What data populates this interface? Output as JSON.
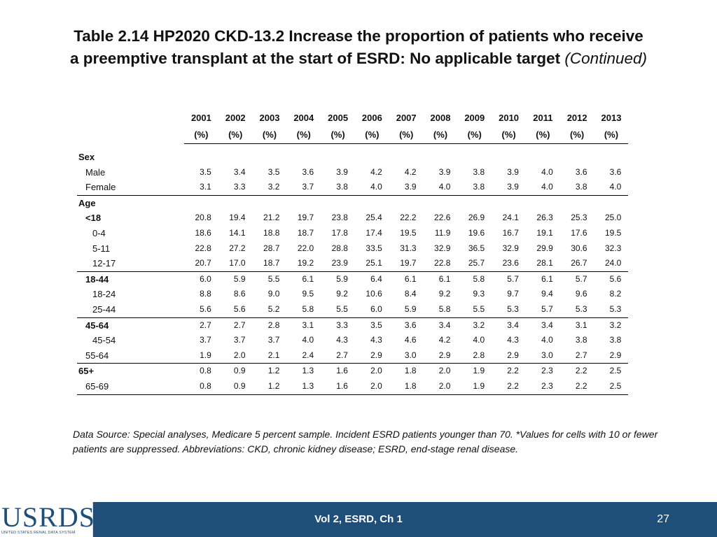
{
  "title": {
    "line1": "Table 2.14  HP2020 CKD-13.2 Increase the proportion of patients who receive",
    "line2": "a preemptive transplant at the start of ESRD: No applicable target",
    "continued": "(Continued)"
  },
  "table": {
    "years": [
      "2001",
      "2002",
      "2003",
      "2004",
      "2005",
      "2006",
      "2007",
      "2008",
      "2009",
      "2010",
      "2011",
      "2012",
      "2013"
    ],
    "unit": "(%)",
    "sections": [
      {
        "label": "Sex",
        "rows": [
          {
            "label": "Male",
            "values": [
              "3.5",
              "3.4",
              "3.5",
              "3.6",
              "3.9",
              "4.2",
              "4.2",
              "3.9",
              "3.8",
              "3.9",
              "4.0",
              "3.6",
              "3.6"
            ]
          },
          {
            "label": "Female",
            "values": [
              "3.1",
              "3.3",
              "3.2",
              "3.7",
              "3.8",
              "4.0",
              "3.9",
              "4.0",
              "3.8",
              "3.9",
              "4.0",
              "3.8",
              "4.0"
            ]
          }
        ]
      },
      {
        "label": "Age",
        "rows": [
          {
            "label": "<18",
            "values": [
              "20.8",
              "19.4",
              "21.2",
              "19.7",
              "23.8",
              "25.4",
              "22.2",
              "22.6",
              "26.9",
              "24.1",
              "26.3",
              "25.3",
              "25.0"
            ]
          },
          {
            "label": "0-4",
            "values": [
              "18.6",
              "14.1",
              "18.8",
              "18.7",
              "17.8",
              "17.4",
              "19.5",
              "11.9",
              "19.6",
              "16.7",
              "19.1",
              "17.6",
              "19.5"
            ]
          },
          {
            "label": "5-11",
            "values": [
              "22.8",
              "27.2",
              "28.7",
              "22.0",
              "28.8",
              "33.5",
              "31.3",
              "32.9",
              "36.5",
              "32.9",
              "29.9",
              "30.6",
              "32.3"
            ]
          },
          {
            "label": "12-17",
            "values": [
              "20.7",
              "17.0",
              "18.7",
              "19.2",
              "23.9",
              "25.1",
              "19.7",
              "22.8",
              "25.7",
              "23.6",
              "28.1",
              "26.7",
              "24.0"
            ]
          },
          {
            "label": "18-44",
            "values": [
              "6.0",
              "5.9",
              "5.5",
              "6.1",
              "5.9",
              "6.4",
              "6.1",
              "6.1",
              "5.8",
              "5.7",
              "6.1",
              "5.7",
              "5.6"
            ]
          },
          {
            "label": "18-24",
            "values": [
              "8.8",
              "8.6",
              "9.0",
              "9.5",
              "9.2",
              "10.6",
              "8.4",
              "9.2",
              "9.3",
              "9.7",
              "9.4",
              "9.6",
              "8.2"
            ]
          },
          {
            "label": "25-44",
            "values": [
              "5.6",
              "5.6",
              "5.2",
              "5.8",
              "5.5",
              "6.0",
              "5.9",
              "5.8",
              "5.5",
              "5.3",
              "5.7",
              "5.3",
              "5.3"
            ]
          },
          {
            "label": "45-64",
            "values": [
              "2.7",
              "2.7",
              "2.8",
              "3.1",
              "3.3",
              "3.5",
              "3.6",
              "3.4",
              "3.2",
              "3.4",
              "3.4",
              "3.1",
              "3.2"
            ]
          },
          {
            "label": "45-54",
            "values": [
              "3.7",
              "3.7",
              "3.7",
              "4.0",
              "4.3",
              "4.3",
              "4.6",
              "4.2",
              "4.0",
              "4.3",
              "4.0",
              "3.8",
              "3.8"
            ]
          },
          {
            "label": "55-64",
            "values": [
              "1.9",
              "2.0",
              "2.1",
              "2.4",
              "2.7",
              "2.9",
              "3.0",
              "2.9",
              "2.8",
              "2.9",
              "3.0",
              "2.7",
              "2.9"
            ]
          },
          {
            "label": "65+",
            "values": [
              "0.8",
              "0.9",
              "1.2",
              "1.3",
              "1.6",
              "2.0",
              "1.8",
              "2.0",
              "1.9",
              "2.2",
              "2.3",
              "2.2",
              "2.5"
            ]
          },
          {
            "label": "65-69",
            "values": [
              "0.8",
              "0.9",
              "1.2",
              "1.3",
              "1.6",
              "2.0",
              "1.8",
              "2.0",
              "1.9",
              "2.2",
              "2.3",
              "2.2",
              "2.5"
            ]
          }
        ]
      }
    ]
  },
  "footnote": "Data Source: Special analyses, Medicare 5 percent sample. Incident ESRD patients younger than 70. *Values for cells with 10 or fewer patients are suppressed. Abbreviations: CKD, chronic kidney disease; ESRD, end-stage renal disease.",
  "footer": {
    "logo_text": "USRDS",
    "logo_subtitle": "UNITED STATES RENAL DATA SYSTEM",
    "center": "Vol 2, ESRD, Ch 1",
    "page_number": "27"
  }
}
